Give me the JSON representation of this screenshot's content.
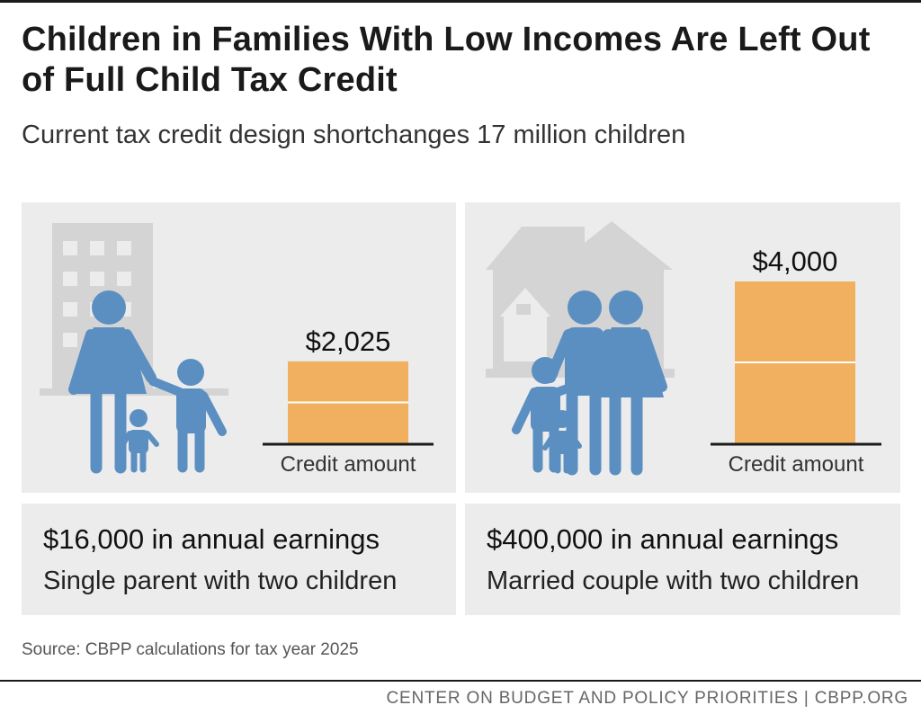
{
  "header": {
    "title": "Children in Families With Low Incomes Are Left Out of Full Child Tax Credit",
    "subtitle": "Current tax credit design shortchanges 17 million children"
  },
  "panels": [
    {
      "earnings": "$16,000 in annual earnings",
      "household": "Single parent with two children"
    },
    {
      "earnings": "$400,000 in annual earnings",
      "household": "Married couple with two children"
    }
  ],
  "chart_data": {
    "type": "bar",
    "categories": [
      "$16,000 in annual earnings",
      "$400,000 in annual earnings"
    ],
    "values": [
      2025,
      4000
    ],
    "value_labels": [
      "$2,025",
      "$4,000"
    ],
    "xlabel": "Credit amount",
    "ylim": [
      0,
      4000
    ],
    "segments_per_bar": 2
  },
  "colors": {
    "bar": "#f0b060",
    "figure": "#5b8fc2",
    "building": "#d4d4d4",
    "panel": "#ececec"
  },
  "footer": {
    "source": "Source: CBPP calculations for tax year 2025",
    "org": "CENTER ON BUDGET AND POLICY PRIORITIES | CBPP.ORG"
  }
}
